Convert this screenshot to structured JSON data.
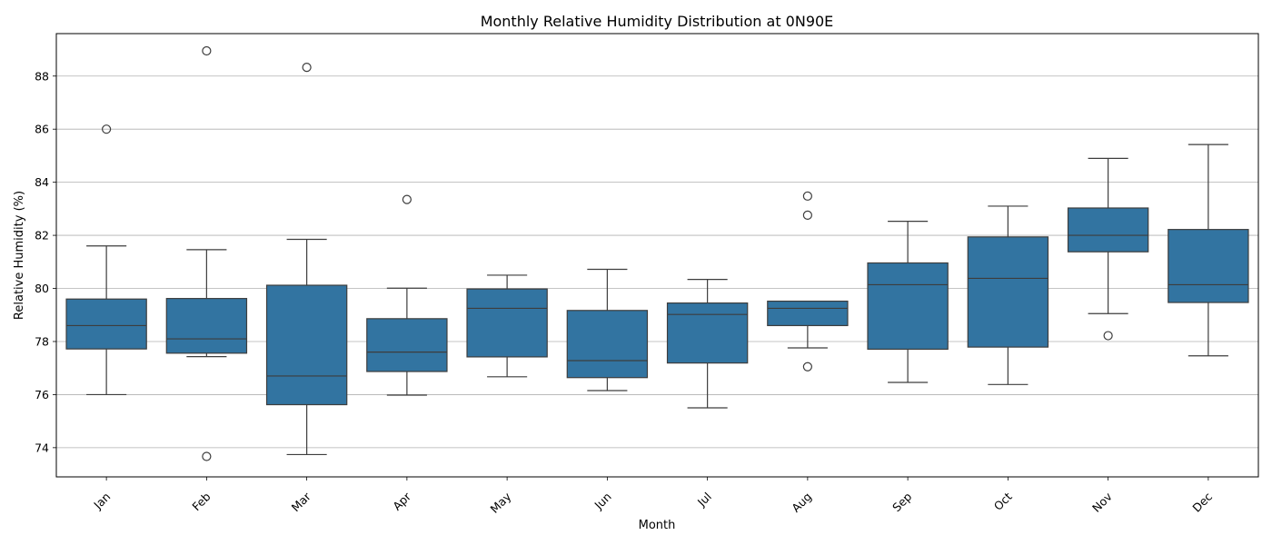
{
  "chart_data": {
    "type": "box",
    "title": "Monthly Relative Humidity Distribution at 0N90E",
    "xlabel": "Month",
    "ylabel": "Relative Humidity (%)",
    "categories": [
      "Jan",
      "Feb",
      "Mar",
      "Apr",
      "May",
      "Jun",
      "Jul",
      "Aug",
      "Sep",
      "Oct",
      "Nov",
      "Dec"
    ],
    "ylim": [
      72.9,
      89.6
    ],
    "yticks": [
      74,
      76,
      78,
      80,
      82,
      84,
      86,
      88
    ],
    "grid": "y",
    "box_color": "#3274a1",
    "boxes": [
      {
        "whisker_low": 76.0,
        "q1": 77.72,
        "median": 78.6,
        "q3": 79.6,
        "whisker_high": 81.6,
        "outliers": [
          86.0
        ]
      },
      {
        "whisker_low": 77.43,
        "q1": 77.56,
        "median": 78.1,
        "q3": 79.62,
        "whisker_high": 81.46,
        "outliers": [
          88.95,
          73.67
        ]
      },
      {
        "whisker_low": 73.74,
        "q1": 75.62,
        "median": 76.7,
        "q3": 80.12,
        "whisker_high": 81.85,
        "outliers": [
          88.33
        ]
      },
      {
        "whisker_low": 75.98,
        "q1": 76.87,
        "median": 77.6,
        "q3": 78.86,
        "whisker_high": 80.01,
        "outliers": [
          83.35
        ]
      },
      {
        "whisker_low": 76.67,
        "q1": 77.42,
        "median": 79.25,
        "q3": 79.98,
        "whisker_high": 80.5,
        "outliers": []
      },
      {
        "whisker_low": 76.15,
        "q1": 76.64,
        "median": 77.28,
        "q3": 79.17,
        "whisker_high": 80.72,
        "outliers": []
      },
      {
        "whisker_low": 75.5,
        "q1": 77.19,
        "median": 79.02,
        "q3": 79.45,
        "whisker_high": 80.34,
        "outliers": []
      },
      {
        "whisker_low": 77.76,
        "q1": 78.6,
        "median": 79.25,
        "q3": 79.52,
        "whisker_high": 79.52,
        "outliers": [
          83.48,
          82.76,
          77.05
        ]
      },
      {
        "whisker_low": 76.46,
        "q1": 77.71,
        "median": 80.14,
        "q3": 80.96,
        "whisker_high": 82.53,
        "outliers": []
      },
      {
        "whisker_low": 76.38,
        "q1": 77.79,
        "median": 80.38,
        "q3": 81.94,
        "whisker_high": 83.1,
        "outliers": []
      },
      {
        "whisker_low": 79.05,
        "q1": 81.38,
        "median": 82.0,
        "q3": 83.03,
        "whisker_high": 84.9,
        "outliers": [
          78.22
        ]
      },
      {
        "whisker_low": 77.46,
        "q1": 79.47,
        "median": 80.14,
        "q3": 82.22,
        "whisker_high": 85.42,
        "outliers": []
      }
    ]
  }
}
